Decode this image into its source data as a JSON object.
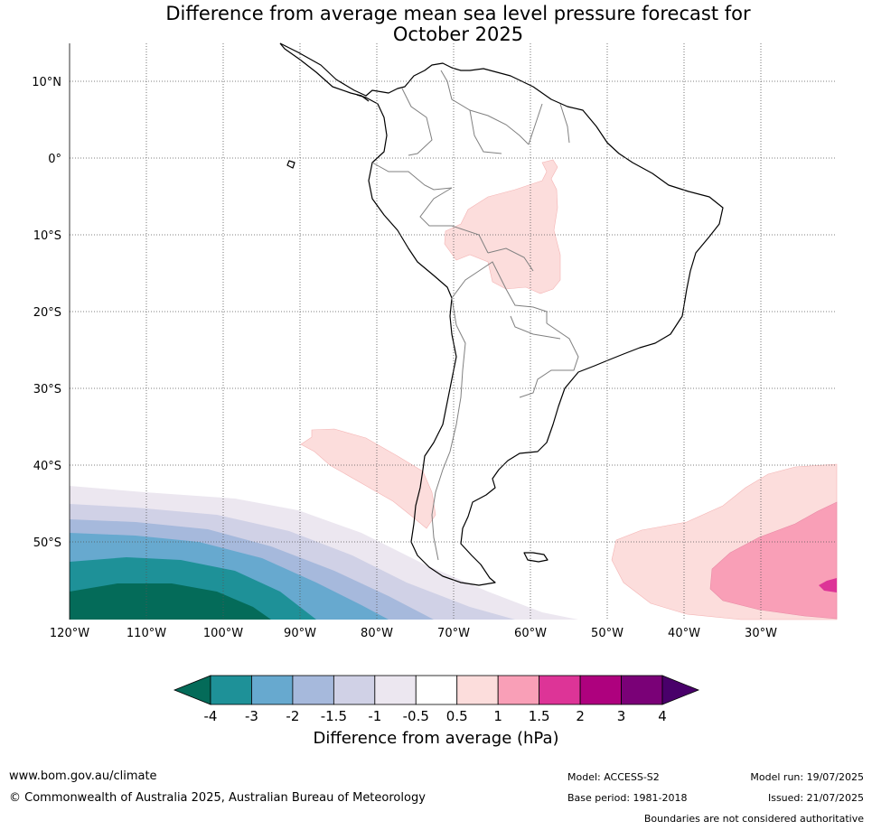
{
  "title_line1": "Difference from average mean sea level pressure forecast for",
  "title_line2": "October 2025",
  "lat_labels": [
    "10°N",
    "0°",
    "10°S",
    "20°S",
    "30°S",
    "40°S",
    "50°S"
  ],
  "lon_labels": [
    "120°W",
    "110°W",
    "100°W",
    "90°W",
    "80°W",
    "70°W",
    "60°W",
    "50°W",
    "40°W",
    "30°W"
  ],
  "colorbar": {
    "title": "Difference from average (hPa)",
    "tick_labels": [
      "-4",
      "-3",
      "-2",
      "-1.5",
      "-1",
      "-0.5",
      "0.5",
      "1",
      "1.5",
      "2",
      "3",
      "4"
    ],
    "colors": {
      "below_-4": "#046b59",
      "-4_to_-3": "#1e9198",
      "-3_to_-2": "#67a9cf",
      "-2_to_-1.5": "#a6b9dc",
      "-1.5_to_-1": "#d0d1e6",
      "-1_to_-0.5": "#ece7f0",
      "-0.5_to_0.5": "#ffffff",
      "0.5_to_1": "#fcdddc",
      "1_to_1.5": "#f99fb7",
      "1.5_to_2": "#dd3497",
      "2_to_3": "#ae017e",
      "3_to_4": "#7a0177",
      "above_4": "#49006a"
    }
  },
  "footer": {
    "website": "www.bom.gov.au/climate",
    "copyright": "© Commonwealth of Australia 2025, Australian Bureau of Meteorology",
    "model": "Model: ACCESS-S2",
    "base_period": "Base period: 1981-2018",
    "model_run": "Model run: 19/07/2025",
    "issued": "Issued: 21/07/2025",
    "boundaries_note": "Boundaries are not considered authoritative"
  }
}
